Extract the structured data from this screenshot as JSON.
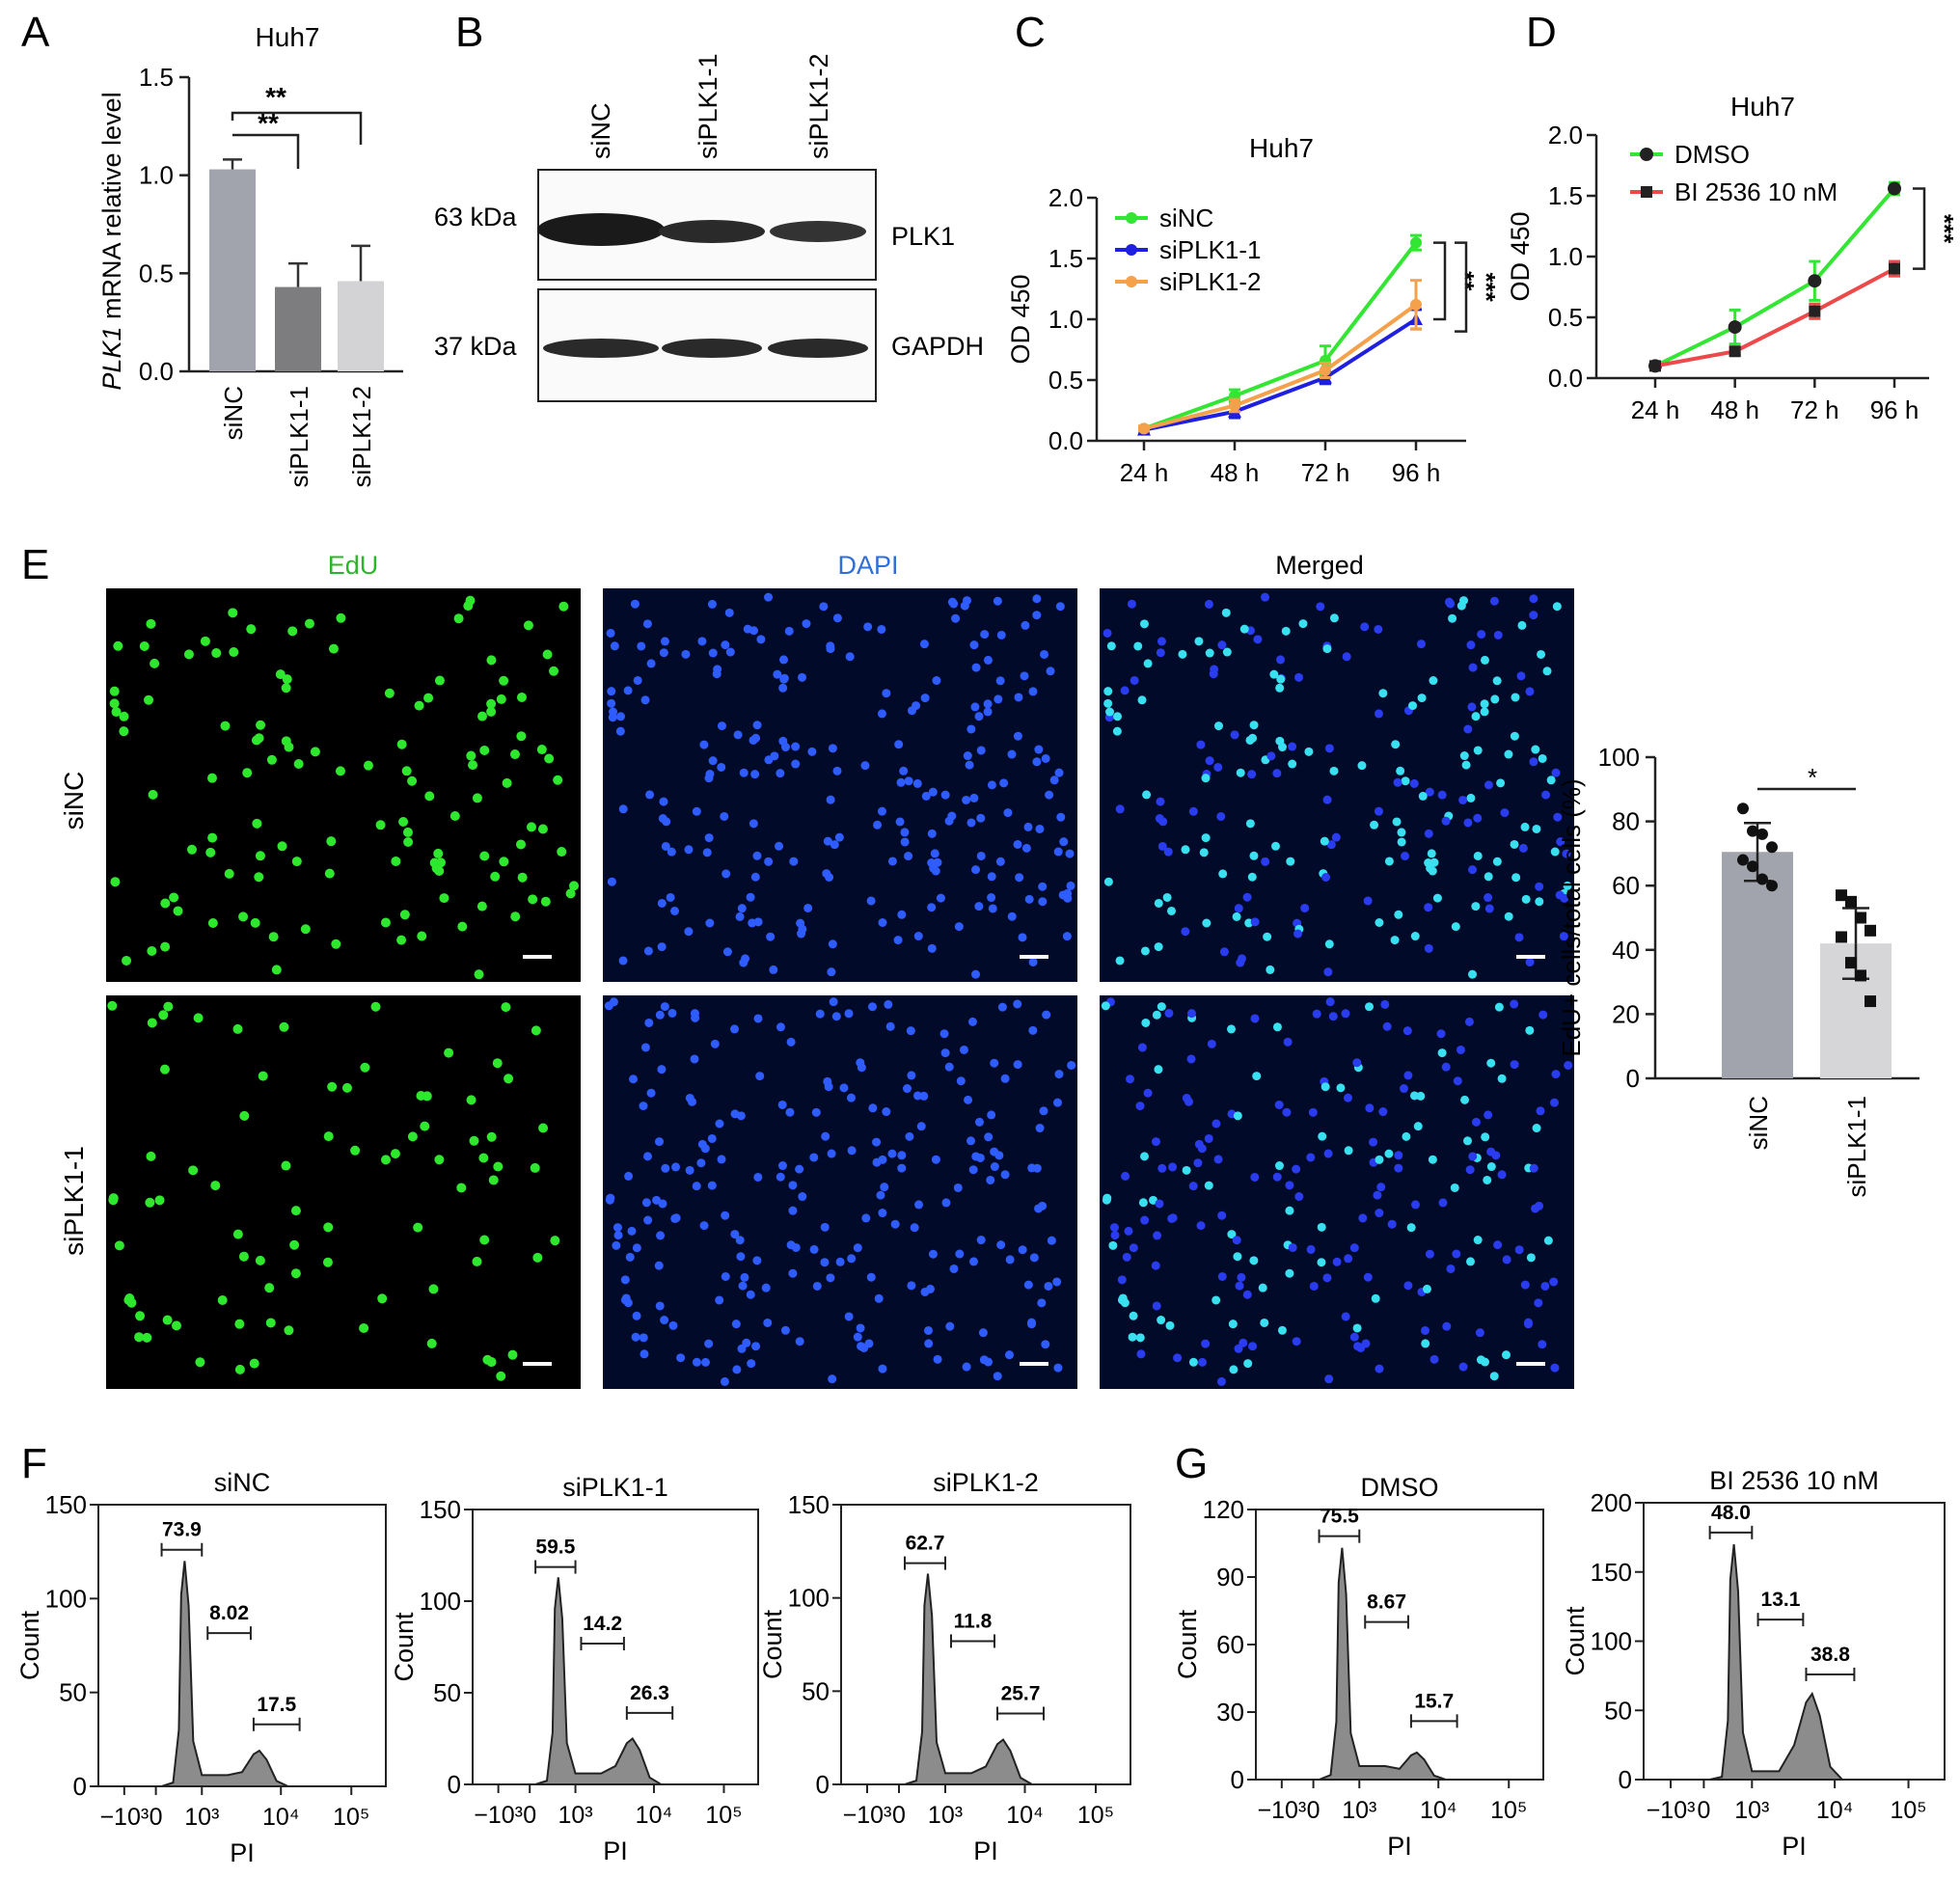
{
  "panels": {
    "A": {
      "letter": "A",
      "title": "Huh7",
      "ylabel_italic": "PLK1",
      "ylabel_rest": " mRNA relative level",
      "significance": [
        "**",
        "**"
      ]
    },
    "B": {
      "letter": "B",
      "lanes": [
        "siNC",
        "siPLK1-1",
        "siPLK1-2"
      ],
      "blots": [
        {
          "size": "63 kDa",
          "protein": "PLK1"
        },
        {
          "size": "37 kDa",
          "protein": "GAPDH"
        }
      ]
    },
    "C": {
      "letter": "C",
      "significance": [
        "**",
        "***"
      ]
    },
    "D": {
      "letter": "D",
      "significance": [
        "***"
      ]
    },
    "E": {
      "letter": "E",
      "columns": [
        "EdU",
        "DAPI",
        "Merged"
      ],
      "rows": [
        "siNC",
        "siPLK1-1"
      ],
      "bar_significance": "*"
    },
    "F": {
      "letter": "F"
    },
    "G": {
      "letter": "G"
    }
  },
  "colors": {
    "bar_siNC": "#a2a4ad",
    "bar_siPLK1_1": "#7d7d80",
    "bar_siPLK1_2": "#d3d3d5",
    "line_siNC": "#33e633",
    "line_siPLK1_1": "#1f1fe0",
    "line_siPLK1_2": "#f5a04a",
    "line_dmso": "#33e633",
    "line_bi2536": "#ec4a4a",
    "edu": "#2ee82e",
    "dapi": "#2f5cff",
    "merged": "#38e0f0",
    "hist_fill": "#8c8c8c"
  },
  "chart_data": [
    {
      "id": "A",
      "type": "bar",
      "title": "Huh7",
      "ylabel": "PLK1 mRNA relative level",
      "categories": [
        "siNC",
        "siPLK1-1",
        "siPLK1-2"
      ],
      "values": [
        1.03,
        0.43,
        0.46
      ],
      "errors": [
        0.05,
        0.12,
        0.18
      ],
      "ylim": [
        0,
        1.5
      ],
      "yticks": [
        "0.0",
        "0.5",
        "1.0",
        "1.5"
      ]
    },
    {
      "id": "C",
      "type": "line",
      "title": "Huh7",
      "ylabel": "OD 450",
      "x": [
        "24 h",
        "48 h",
        "72 h",
        "96 h"
      ],
      "ylim": [
        0,
        2.0
      ],
      "yticks": [
        "0.0",
        "0.5",
        "1.0",
        "1.5",
        "2.0"
      ],
      "series": [
        {
          "name": "siNC",
          "values": [
            0.1,
            0.37,
            0.66,
            1.63
          ],
          "errors": [
            0.02,
            0.05,
            0.12,
            0.06
          ]
        },
        {
          "name": "siPLK1-1",
          "values": [
            0.09,
            0.24,
            0.52,
            1.0
          ],
          "errors": [
            0.02,
            0.05,
            0.05,
            0.08
          ]
        },
        {
          "name": "siPLK1-2",
          "values": [
            0.1,
            0.29,
            0.58,
            1.12
          ],
          "errors": [
            0.02,
            0.05,
            0.06,
            0.2
          ]
        }
      ]
    },
    {
      "id": "D",
      "type": "line",
      "title": "Huh7",
      "ylabel": "OD 450",
      "x": [
        "24 h",
        "48 h",
        "72 h",
        "96 h"
      ],
      "ylim": [
        0,
        2.0
      ],
      "yticks": [
        "0.0",
        "0.5",
        "1.0",
        "1.5",
        "2.0"
      ],
      "series": [
        {
          "name": "DMSO",
          "values": [
            0.1,
            0.42,
            0.8,
            1.56
          ],
          "errors": [
            0.02,
            0.14,
            0.16,
            0.05
          ]
        },
        {
          "name": "BI 2536 10 nM",
          "values": [
            0.1,
            0.22,
            0.55,
            0.9
          ],
          "errors": [
            0.02,
            0.03,
            0.06,
            0.06
          ]
        }
      ]
    },
    {
      "id": "E-bar",
      "type": "bar",
      "ylabel": "EdU+ cells/total cells (%)",
      "categories": [
        "siNC",
        "siPLK1-1"
      ],
      "values": [
        70.5,
        42.0
      ],
      "errors": [
        9,
        11
      ],
      "ylim": [
        0,
        100
      ],
      "yticks": [
        "0",
        "20",
        "40",
        "60",
        "80",
        "100"
      ],
      "points": [
        [
          84,
          77,
          76,
          72,
          68,
          66,
          62,
          60
        ],
        [
          57,
          55,
          50,
          46,
          44,
          36,
          32,
          24
        ]
      ]
    },
    {
      "id": "F1",
      "type": "histogram",
      "title": "siNC",
      "xlabel": "PI",
      "ylabel": "Count",
      "yticks": [
        "0",
        "50",
        "100",
        "150"
      ],
      "ymax": 150,
      "gates": [
        "73.9",
        "8.02",
        "17.5"
      ],
      "peak": 120,
      "second_peak": 19
    },
    {
      "id": "F2",
      "type": "histogram",
      "title": "siPLK1-1",
      "xlabel": "PI",
      "ylabel": "Count",
      "yticks": [
        "0",
        "50",
        "100",
        "150"
      ],
      "ymax": 150,
      "gates": [
        "59.5",
        "14.2",
        "26.3"
      ],
      "peak": 113,
      "second_peak": 25
    },
    {
      "id": "F3",
      "type": "histogram",
      "title": "siPLK1-2",
      "xlabel": "PI",
      "ylabel": "Count",
      "yticks": [
        "0",
        "50",
        "100",
        "150"
      ],
      "ymax": 150,
      "gates": [
        "62.7",
        "11.8",
        "25.7"
      ],
      "peak": 113,
      "second_peak": 24
    },
    {
      "id": "G1",
      "type": "histogram",
      "title": "DMSO",
      "xlabel": "PI",
      "ylabel": "Count",
      "yticks": [
        "0",
        "30",
        "60",
        "90",
        "120"
      ],
      "ymax": 120,
      "gates": [
        "75.5",
        "8.67",
        "15.7"
      ],
      "peak": 103,
      "second_peak": 12
    },
    {
      "id": "G2",
      "type": "histogram",
      "title": "BI 2536 10 nM",
      "xlabel": "PI",
      "ylabel": "Count",
      "yticks": [
        "0",
        "50",
        "100",
        "150",
        "200"
      ],
      "ymax": 200,
      "gates": [
        "48.0",
        "13.1",
        "38.8"
      ],
      "peak": 170,
      "second_peak": 62
    }
  ]
}
